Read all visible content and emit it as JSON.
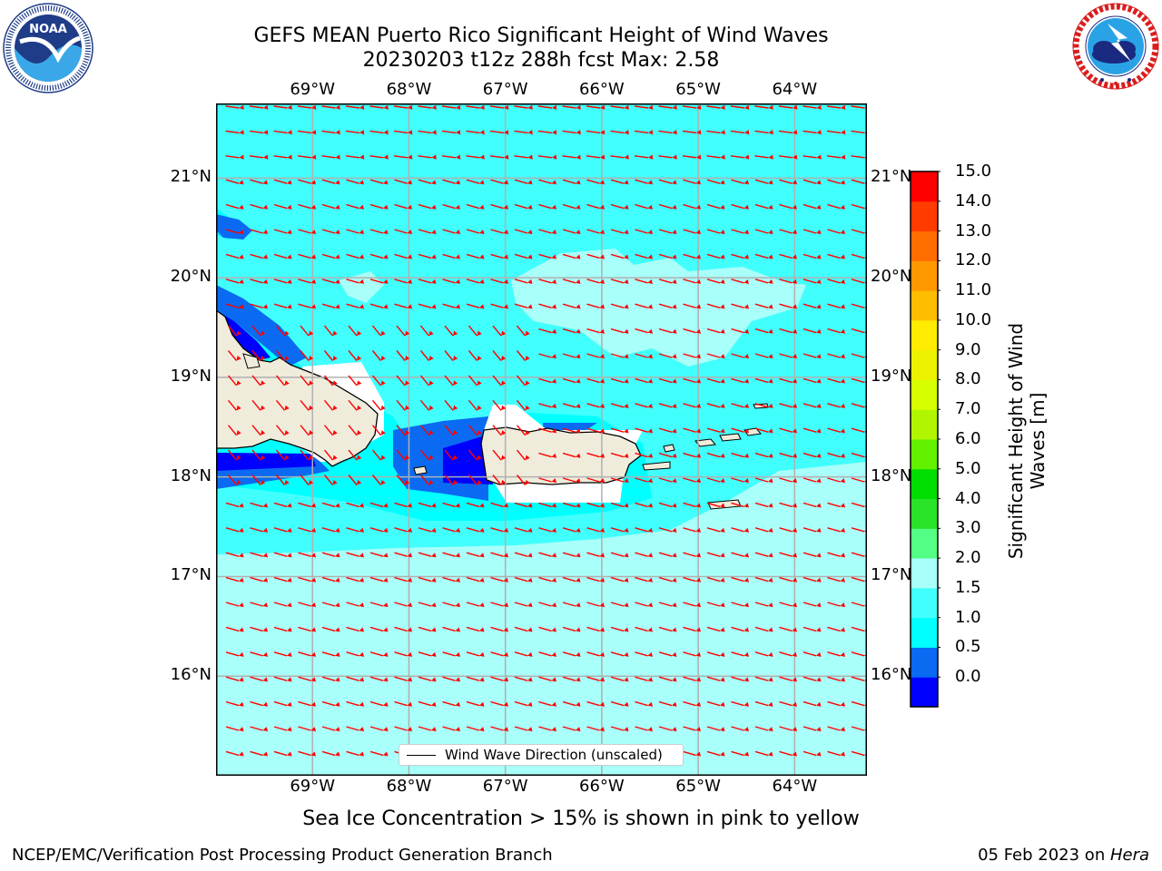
{
  "title": {
    "line1": "GEFS MEAN Puerto Rico Significant Height of Wind Waves",
    "line2": "20230203 t12z 288h fcst   Max: 2.58"
  },
  "logos": {
    "noaa": {
      "icon": "noaa-logo-icon",
      "text": "NOAA",
      "ring_text": "NATIONAL OCEANIC AND ATMOSPHERIC ADMINISTRATION · U.S. DEPARTMENT OF COMMERCE"
    },
    "nws": {
      "icon": "national-weather-service-logo-icon",
      "ring_text": "NATIONAL WEATHER SERVICE"
    }
  },
  "map": {
    "lon_labels": [
      "69°W",
      "68°W",
      "67°W",
      "66°W",
      "65°W",
      "64°W"
    ],
    "lat_labels": [
      "21°N",
      "20°N",
      "19°N",
      "18°N",
      "17°N",
      "16°N"
    ],
    "lon_range": [
      -70.0,
      -63.25
    ],
    "lat_range": [
      15.0,
      21.75
    ],
    "lon_ticks": [
      -69,
      -68,
      -67,
      -66,
      -65,
      -64
    ],
    "lat_ticks": [
      21,
      20,
      19,
      18,
      17,
      16
    ],
    "gridlines": true,
    "arrow_color": "#ff0000",
    "land_color": "#efecdc",
    "legend": {
      "label": "Wind Wave Direction (unscaled)",
      "placement": "bottom-center"
    }
  },
  "colorbar": {
    "title": "Significant Height of Wind Waves [m]",
    "tick_labels": [
      "15.0",
      "14.0",
      "13.0",
      "12.0",
      "11.0",
      "10.0",
      "9.0",
      "8.0",
      "7.0",
      "6.0",
      "5.0",
      "4.0",
      "3.0",
      "2.0",
      "1.5",
      "1.0",
      "0.5",
      "0.0"
    ],
    "colors": [
      "#0000ff",
      "#0a6bf2",
      "#00ffff",
      "#41fffd",
      "#a9fff9",
      "#54ff85",
      "#29e329",
      "#00dd00",
      "#63f100",
      "#b1f500",
      "#d8ff00",
      "#ecf200",
      "#ffec00",
      "#ffbd00",
      "#ff9800",
      "#ff6d00",
      "#ff3b00",
      "#ff0000"
    ]
  },
  "notes": {
    "sea_ice": "Sea Ice Concentration > 15% is shown in pink to yellow",
    "credit": "NCEP/EMC/Verification Post Processing Product Generation Branch",
    "date_prefix": "05 Feb 2023 on ",
    "date_host": "Hera"
  }
}
